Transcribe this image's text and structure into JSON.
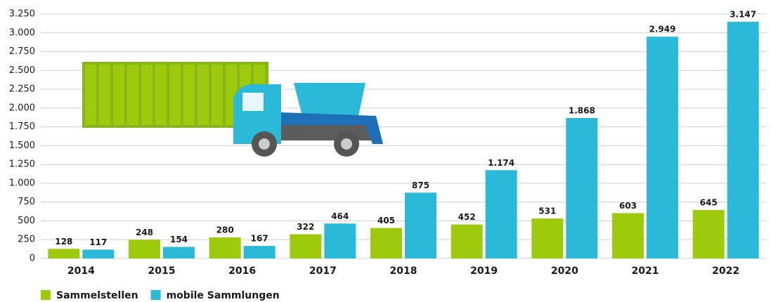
{
  "chart_data": {
    "type": "bar",
    "categories": [
      "2014",
      "2015",
      "2016",
      "2017",
      "2018",
      "2019",
      "2020",
      "2021",
      "2022"
    ],
    "series": [
      {
        "name": "Sammelstellen",
        "color": "#9dcb0c",
        "values": [
          128,
          248,
          280,
          322,
          405,
          452,
          531,
          603,
          645
        ]
      },
      {
        "name": "mobile Sammlungen",
        "color": "#2bb9da",
        "values": [
          117,
          154,
          167,
          464,
          875,
          1174,
          1868,
          2949,
          3147
        ],
        "value_labels": [
          "117",
          "154",
          "167",
          "464",
          "875",
          "1.174",
          "1.868",
          "2.949",
          "3.147"
        ]
      }
    ],
    "ylim": [
      0,
      3250
    ],
    "yticks": [
      0,
      250,
      500,
      750,
      {
        "value": 1000,
        "label": "1.000"
      },
      {
        "value": 1250,
        "label": "1.250"
      },
      {
        "value": 1500,
        "label": "1.500"
      },
      {
        "value": 1750,
        "label": "1.750"
      },
      {
        "value": 2000,
        "label": "2.000"
      },
      {
        "value": 2250,
        "label": "2.250"
      },
      {
        "value": 2500,
        "label": "2.500"
      },
      {
        "value": 2750,
        "label": "2.750"
      },
      {
        "value": 3000,
        "label": "3.000"
      },
      {
        "value": 3250,
        "label": "3.250"
      }
    ],
    "grid": true,
    "legend": "bottom-left"
  }
}
